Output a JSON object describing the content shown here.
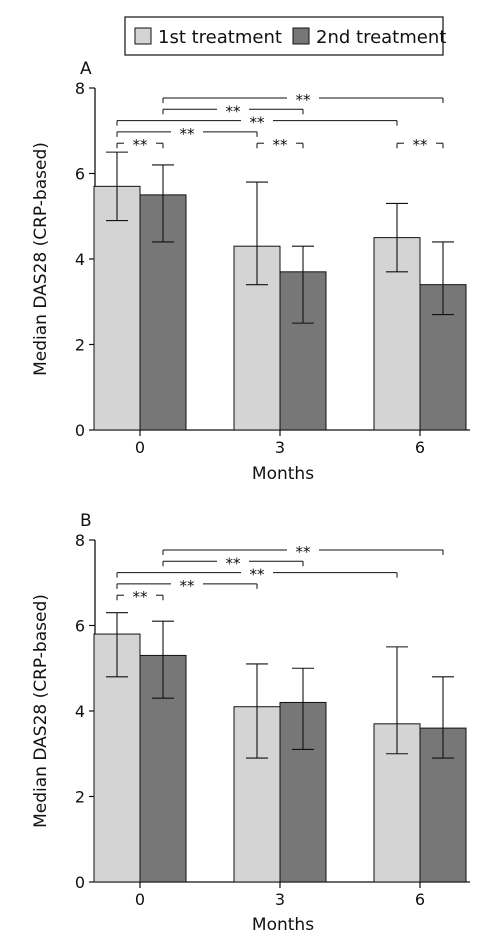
{
  "legend": {
    "items": [
      {
        "label": "1st treatment",
        "color": "#d4d4d4"
      },
      {
        "label": "2nd treatment",
        "color": "#777777"
      }
    ]
  },
  "colors": {
    "series_1": "#d4d4d4",
    "series_2": "#777777",
    "axis": "#111111"
  },
  "significance_marker": "**",
  "chart_data": [
    {
      "panel_label": "A",
      "type": "bar",
      "xlabel": "Months",
      "ylabel": "Median DAS28 (CRP-based)",
      "ylim": [
        0,
        8
      ],
      "yticks": [
        0,
        2,
        4,
        6,
        8
      ],
      "categories": [
        "0",
        "3",
        "6"
      ],
      "series": [
        {
          "name": "1st treatment",
          "values": [
            5.7,
            4.3,
            4.5
          ],
          "error_low": [
            4.9,
            3.4,
            3.7
          ],
          "error_high": [
            6.5,
            5.8,
            5.3
          ]
        },
        {
          "name": "2nd treatment",
          "values": [
            5.5,
            3.7,
            3.4
          ],
          "error_low": [
            4.4,
            2.5,
            2.7
          ],
          "error_high": [
            6.2,
            4.3,
            4.4
          ]
        }
      ],
      "significance": [
        {
          "from": [
            0,
            1
          ],
          "to": [
            2,
            1
          ],
          "label": "**"
        },
        {
          "from": [
            0,
            1
          ],
          "to": [
            1,
            1
          ],
          "label": "**"
        },
        {
          "from": [
            0,
            0
          ],
          "to": [
            2,
            0
          ],
          "label": "**"
        },
        {
          "from": [
            0,
            0
          ],
          "to": [
            1,
            0
          ],
          "label": "**"
        },
        {
          "from": [
            0,
            0
          ],
          "to": [
            0,
            1
          ],
          "label": "**"
        },
        {
          "from": [
            1,
            0
          ],
          "to": [
            1,
            1
          ],
          "label": "**"
        },
        {
          "from": [
            2,
            0
          ],
          "to": [
            2,
            1
          ],
          "label": "**"
        }
      ]
    },
    {
      "panel_label": "B",
      "type": "bar",
      "xlabel": "Months",
      "ylabel": "Median DAS28 (CRP-based)",
      "ylim": [
        0,
        8
      ],
      "yticks": [
        0,
        2,
        4,
        6,
        8
      ],
      "categories": [
        "0",
        "3",
        "6"
      ],
      "series": [
        {
          "name": "1st treatment",
          "values": [
            5.8,
            4.1,
            3.7
          ],
          "error_low": [
            4.8,
            2.9,
            3.0
          ],
          "error_high": [
            6.3,
            5.1,
            5.5
          ]
        },
        {
          "name": "2nd treatment",
          "values": [
            5.3,
            4.2,
            3.6
          ],
          "error_low": [
            4.3,
            3.1,
            2.9
          ],
          "error_high": [
            6.1,
            5.0,
            4.8
          ]
        }
      ],
      "significance": [
        {
          "from": [
            0,
            1
          ],
          "to": [
            2,
            1
          ],
          "label": "**"
        },
        {
          "from": [
            0,
            1
          ],
          "to": [
            1,
            1
          ],
          "label": "**"
        },
        {
          "from": [
            0,
            0
          ],
          "to": [
            2,
            0
          ],
          "label": "**"
        },
        {
          "from": [
            0,
            0
          ],
          "to": [
            1,
            0
          ],
          "label": "**"
        },
        {
          "from": [
            0,
            0
          ],
          "to": [
            0,
            1
          ],
          "label": "**"
        }
      ]
    }
  ]
}
